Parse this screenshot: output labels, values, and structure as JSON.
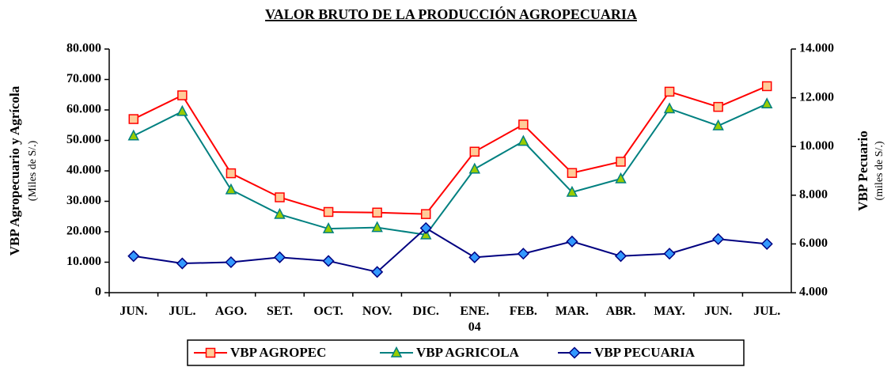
{
  "chart_data": {
    "type": "line",
    "title": "VALOR BRUTO DE LA PRODUCCIÓN AGROPECUARIA",
    "y_label": "VBP Agropecuario y Agrícola",
    "y_sublabel": "(Miles de S/.)",
    "y2_label": "VBP Pecuario",
    "y2_sublabel": "(miles de S/.)",
    "categories": [
      "JUN.",
      "JUL.",
      "AGO.",
      "SET.",
      "OCT.",
      "NOV.",
      "DIC.",
      "ENE.\n04",
      "FEB.",
      "MAR.",
      "ABR.",
      "MAY.",
      "JUN.",
      "JUL."
    ],
    "ylim": [
      0,
      80000
    ],
    "yticks": [
      0,
      {
        "value": 10000,
        "label": "10.000"
      },
      {
        "value": 20000,
        "label": "20.000"
      },
      {
        "value": 30000,
        "label": "30.000"
      },
      {
        "value": 40000,
        "label": "40.000"
      },
      {
        "value": 50000,
        "label": "50.000"
      },
      {
        "value": 60000,
        "label": "60.000"
      },
      {
        "value": 70000,
        "label": "70.000"
      },
      {
        "value": 80000,
        "label": "80.000"
      }
    ],
    "y2lim": [
      4000,
      14000
    ],
    "y2ticks": [
      {
        "value": 4000,
        "label": "4.000"
      },
      {
        "value": 6000,
        "label": "6.000"
      },
      {
        "value": 8000,
        "label": "8.000"
      },
      {
        "value": 10000,
        "label": "10.000"
      },
      {
        "value": 12000,
        "label": "12.000"
      },
      {
        "value": 14000,
        "label": "14.000"
      }
    ],
    "legend": "bottom",
    "series": [
      {
        "name": "VBP AGROPEC",
        "color": "#ff0000",
        "marker": "square",
        "marker_color": "#ffcc99",
        "values": [
          57000,
          64800,
          39200,
          31300,
          26500,
          26300,
          25800,
          46300,
          55200,
          39300,
          43000,
          66000,
          61000,
          67800
        ]
      },
      {
        "name": "VBP AGRICOLA",
        "color": "#008080",
        "marker": "triangle",
        "marker_color": "#99cc00",
        "values": [
          51500,
          59500,
          33800,
          25700,
          21000,
          21400,
          19000,
          40600,
          49700,
          33000,
          37400,
          60400,
          54800,
          62000
        ]
      },
      {
        "name": "VBP PECUARIA",
        "color": "#000080",
        "marker": "diamond",
        "marker_color": "#3399ff",
        "axis": "y2",
        "values": [
          5500,
          5200,
          5250,
          5450,
          5300,
          4850,
          6650,
          5450,
          5600,
          6100,
          5500,
          5600,
          6200,
          6000
        ]
      }
    ]
  }
}
